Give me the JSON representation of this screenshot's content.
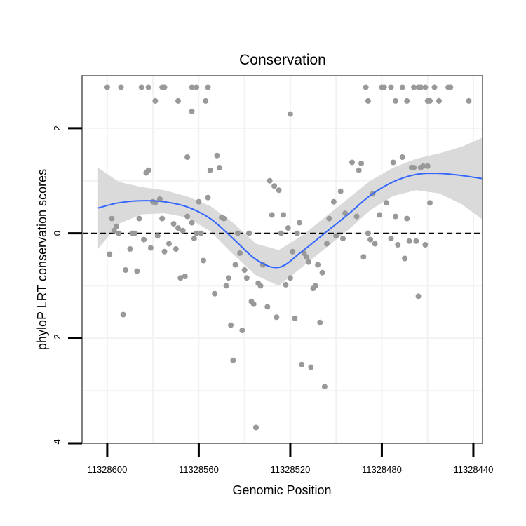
{
  "chart_data": {
    "type": "scatter",
    "title": "Conservation",
    "xlabel": "Genomic Position",
    "ylabel": "phyloP LRT conservation scores",
    "x_reversed": true,
    "xlim": [
      11328611,
      11328436
    ],
    "ylim": [
      -4,
      3
    ],
    "x_ticks": [
      11328600,
      11328560,
      11328520,
      11328480,
      11328440
    ],
    "x_tick_labels": [
      "11328600",
      "11328560",
      "11328520",
      "11328480",
      "11328440"
    ],
    "y_ticks": [
      -4,
      -2,
      0,
      2
    ],
    "y_tick_labels": [
      "-4",
      "-2",
      "0",
      "2"
    ],
    "grid": true,
    "reference_line": {
      "y": 0,
      "style": "dashed"
    },
    "colors": {
      "points": "#999999",
      "smooth_line": "#3366FF",
      "confidence_band": "#D6D6D6",
      "panel_border": "#808080",
      "grid": "#F2F2F2",
      "reference_line": "#000000"
    },
    "points": [
      {
        "x": 11328600,
        "y": 2.78
      },
      {
        "x": 11328594,
        "y": 2.78
      },
      {
        "x": 11328585,
        "y": 2.78
      },
      {
        "x": 11328582,
        "y": 2.78
      },
      {
        "x": 11328579,
        "y": 2.52
      },
      {
        "x": 11328576,
        "y": 2.78
      },
      {
        "x": 11328575,
        "y": 2.78
      },
      {
        "x": 11328569,
        "y": 2.52
      },
      {
        "x": 11328563,
        "y": 2.78
      },
      {
        "x": 11328561,
        "y": 2.78
      },
      {
        "x": 11328557,
        "y": 2.52
      },
      {
        "x": 11328556,
        "y": 2.78
      },
      {
        "x": 11328520,
        "y": 2.27
      },
      {
        "x": 11328487,
        "y": 2.78
      },
      {
        "x": 11328486,
        "y": 2.52
      },
      {
        "x": 11328480,
        "y": 2.78
      },
      {
        "x": 11328479,
        "y": 2.78
      },
      {
        "x": 11328476,
        "y": 2.78
      },
      {
        "x": 11328474,
        "y": 2.52
      },
      {
        "x": 11328471,
        "y": 2.78
      },
      {
        "x": 11328469,
        "y": 2.52
      },
      {
        "x": 11328466,
        "y": 2.78
      },
      {
        "x": 11328464,
        "y": 2.78
      },
      {
        "x": 11328463,
        "y": 2.78
      },
      {
        "x": 11328461,
        "y": 2.78
      },
      {
        "x": 11328460,
        "y": 2.52
      },
      {
        "x": 11328459,
        "y": 2.52
      },
      {
        "x": 11328457,
        "y": 2.78
      },
      {
        "x": 11328455,
        "y": 2.52
      },
      {
        "x": 11328451,
        "y": 2.78
      },
      {
        "x": 11328450,
        "y": 2.78
      },
      {
        "x": 11328442,
        "y": 2.52
      },
      {
        "x": 11328563,
        "y": 2.32
      },
      {
        "x": 11328565,
        "y": 1.45
      },
      {
        "x": 11328599,
        "y": -0.4
      },
      {
        "x": 11328598,
        "y": 0.28
      },
      {
        "x": 11328597,
        "y": 0.05
      },
      {
        "x": 11328596,
        "y": 0.13
      },
      {
        "x": 11328595,
        "y": 0.0
      },
      {
        "x": 11328593,
        "y": -1.55
      },
      {
        "x": 11328592,
        "y": -0.7
      },
      {
        "x": 11328590,
        "y": -0.3
      },
      {
        "x": 11328589,
        "y": 0.0
      },
      {
        "x": 11328588,
        "y": 0.0
      },
      {
        "x": 11328587,
        "y": -0.72
      },
      {
        "x": 11328586,
        "y": 0.28
      },
      {
        "x": 11328584,
        "y": -0.12
      },
      {
        "x": 11328583,
        "y": 1.15
      },
      {
        "x": 11328582,
        "y": 1.2
      },
      {
        "x": 11328581,
        "y": -0.28
      },
      {
        "x": 11328580,
        "y": 0.6
      },
      {
        "x": 11328579,
        "y": 0.58
      },
      {
        "x": 11328578,
        "y": -0.05
      },
      {
        "x": 11328577,
        "y": 0.65
      },
      {
        "x": 11328576,
        "y": 0.28
      },
      {
        "x": 11328575,
        "y": -0.35
      },
      {
        "x": 11328573,
        "y": -0.2
      },
      {
        "x": 11328571,
        "y": 0.18
      },
      {
        "x": 11328570,
        "y": -0.3
      },
      {
        "x": 11328569,
        "y": 0.1
      },
      {
        "x": 11328568,
        "y": -0.85
      },
      {
        "x": 11328567,
        "y": 0.05
      },
      {
        "x": 11328566,
        "y": -0.82
      },
      {
        "x": 11328565,
        "y": 0.32
      },
      {
        "x": 11328563,
        "y": 0.2
      },
      {
        "x": 11328562,
        "y": -0.1
      },
      {
        "x": 11328561,
        "y": 0.0
      },
      {
        "x": 11328560,
        "y": 0.6
      },
      {
        "x": 11328559,
        "y": 0.0
      },
      {
        "x": 11328558,
        "y": -0.52
      },
      {
        "x": 11328556,
        "y": 0.68
      },
      {
        "x": 11328555,
        "y": 1.2
      },
      {
        "x": 11328553,
        "y": -1.15
      },
      {
        "x": 11328552,
        "y": 1.48
      },
      {
        "x": 11328551,
        "y": 1.25
      },
      {
        "x": 11328550,
        "y": 0.3
      },
      {
        "x": 11328549,
        "y": 0.28
      },
      {
        "x": 11328548,
        "y": -1.0
      },
      {
        "x": 11328547,
        "y": -0.85
      },
      {
        "x": 11328546,
        "y": -1.75
      },
      {
        "x": 11328545,
        "y": -2.42
      },
      {
        "x": 11328544,
        "y": -0.6
      },
      {
        "x": 11328543,
        "y": 0.0
      },
      {
        "x": 11328542,
        "y": -0.38
      },
      {
        "x": 11328541,
        "y": -1.85
      },
      {
        "x": 11328540,
        "y": -0.7
      },
      {
        "x": 11328539,
        "y": -0.85
      },
      {
        "x": 11328538,
        "y": 0.0
      },
      {
        "x": 11328537,
        "y": -1.3
      },
      {
        "x": 11328536,
        "y": -1.35
      },
      {
        "x": 11328535,
        "y": -3.7
      },
      {
        "x": 11328534,
        "y": -0.95
      },
      {
        "x": 11328533,
        "y": -1.0
      },
      {
        "x": 11328532,
        "y": -0.6
      },
      {
        "x": 11328530,
        "y": -1.4
      },
      {
        "x": 11328529,
        "y": 1.0
      },
      {
        "x": 11328528,
        "y": 0.35
      },
      {
        "x": 11328527,
        "y": 0.9
      },
      {
        "x": 11328526,
        "y": -1.6
      },
      {
        "x": 11328525,
        "y": 0.82
      },
      {
        "x": 11328524,
        "y": 0.0
      },
      {
        "x": 11328523,
        "y": 0.35
      },
      {
        "x": 11328522,
        "y": -0.98
      },
      {
        "x": 11328521,
        "y": 0.1
      },
      {
        "x": 11328520,
        "y": -0.85
      },
      {
        "x": 11328519,
        "y": -0.35
      },
      {
        "x": 11328518,
        "y": -1.62
      },
      {
        "x": 11328517,
        "y": 0.0
      },
      {
        "x": 11328516,
        "y": 0.2
      },
      {
        "x": 11328515,
        "y": -2.5
      },
      {
        "x": 11328514,
        "y": -0.38
      },
      {
        "x": 11328513,
        "y": -0.45
      },
      {
        "x": 11328512,
        "y": -0.55
      },
      {
        "x": 11328511,
        "y": -2.55
      },
      {
        "x": 11328510,
        "y": -1.05
      },
      {
        "x": 11328509,
        "y": -1.0
      },
      {
        "x": 11328508,
        "y": -0.6
      },
      {
        "x": 11328507,
        "y": -1.7
      },
      {
        "x": 11328506,
        "y": -0.75
      },
      {
        "x": 11328505,
        "y": -2.92
      },
      {
        "x": 11328504,
        "y": -0.2
      },
      {
        "x": 11328503,
        "y": 0.28
      },
      {
        "x": 11328501,
        "y": 0.6
      },
      {
        "x": 11328500,
        "y": -0.05
      },
      {
        "x": 11328498,
        "y": 0.8
      },
      {
        "x": 11328497,
        "y": -0.1
      },
      {
        "x": 11328496,
        "y": 0.38
      },
      {
        "x": 11328493,
        "y": 1.35
      },
      {
        "x": 11328491,
        "y": 0.32
      },
      {
        "x": 11328490,
        "y": 1.2
      },
      {
        "x": 11328489,
        "y": 1.33
      },
      {
        "x": 11328488,
        "y": -0.45
      },
      {
        "x": 11328486,
        "y": 0.0
      },
      {
        "x": 11328485,
        "y": -0.12
      },
      {
        "x": 11328484,
        "y": 0.75
      },
      {
        "x": 11328483,
        "y": -0.2
      },
      {
        "x": 11328481,
        "y": 0.35
      },
      {
        "x": 11328478,
        "y": 0.58
      },
      {
        "x": 11328476,
        "y": -0.1
      },
      {
        "x": 11328475,
        "y": 1.35
      },
      {
        "x": 11328474,
        "y": 0.32
      },
      {
        "x": 11328473,
        "y": -0.22
      },
      {
        "x": 11328471,
        "y": 1.45
      },
      {
        "x": 11328470,
        "y": -0.48
      },
      {
        "x": 11328469,
        "y": 0.28
      },
      {
        "x": 11328468,
        "y": -0.15
      },
      {
        "x": 11328467,
        "y": 1.25
      },
      {
        "x": 11328466,
        "y": 1.25
      },
      {
        "x": 11328465,
        "y": -0.15
      },
      {
        "x": 11328464,
        "y": -1.2
      },
      {
        "x": 11328463,
        "y": 1.25
      },
      {
        "x": 11328462,
        "y": 1.28
      },
      {
        "x": 11328461,
        "y": -0.22
      },
      {
        "x": 11328460,
        "y": 1.28
      },
      {
        "x": 11328459,
        "y": 0.58
      }
    ],
    "smooth_line": {
      "x": [
        11328604,
        11328595,
        11328585,
        11328575,
        11328565,
        11328555,
        11328545,
        11328535,
        11328525,
        11328515,
        11328505,
        11328495,
        11328485,
        11328475,
        11328465,
        11328455,
        11328445,
        11328436
      ],
      "y": [
        0.48,
        0.58,
        0.62,
        0.6,
        0.5,
        0.28,
        -0.1,
        -0.5,
        -0.65,
        -0.35,
        0.0,
        0.35,
        0.72,
        0.98,
        1.12,
        1.14,
        1.1,
        1.04
      ]
    },
    "confidence_band": {
      "upper": [
        1.25,
        0.98,
        0.88,
        0.82,
        0.7,
        0.52,
        0.2,
        -0.2,
        -0.32,
        -0.05,
        0.3,
        0.65,
        1.0,
        1.25,
        1.42,
        1.52,
        1.65,
        1.82
      ],
      "lower": [
        -0.3,
        0.18,
        0.36,
        0.38,
        0.3,
        0.04,
        -0.4,
        -0.8,
        -1.0,
        -0.65,
        -0.3,
        0.05,
        0.44,
        0.71,
        0.82,
        0.76,
        0.55,
        0.26
      ]
    }
  }
}
